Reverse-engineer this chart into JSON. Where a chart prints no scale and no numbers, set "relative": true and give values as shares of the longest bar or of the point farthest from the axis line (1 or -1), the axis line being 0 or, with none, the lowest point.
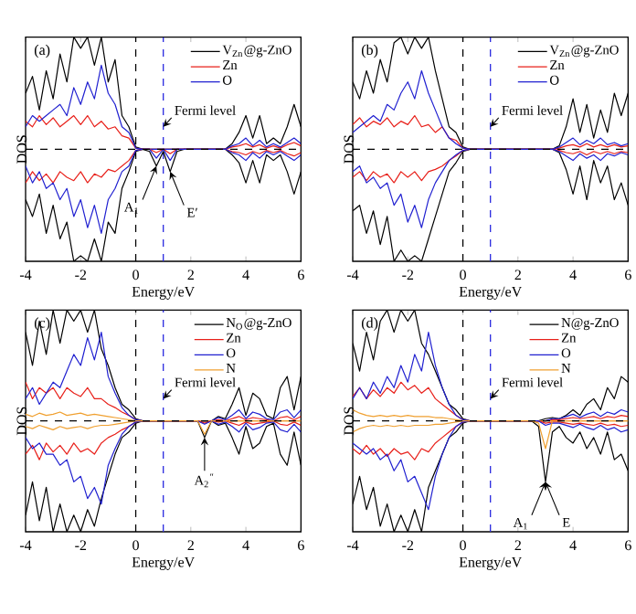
{
  "chart_data": [
    {
      "type": "line",
      "title": "(a)",
      "xlabel": "Energy/eV",
      "ylabel": "DOS",
      "relative": true,
      "legend": "top right",
      "xlim": [
        -4,
        6
      ],
      "xticks": [
        -4,
        -2,
        0,
        2,
        4,
        6
      ],
      "x": [
        -4,
        -3.75,
        -3.5,
        -3.25,
        -3,
        -2.75,
        -2.5,
        -2.25,
        -2,
        -1.75,
        -1.5,
        -1.25,
        -1,
        -0.75,
        -0.5,
        -0.25,
        0,
        0.25,
        0.5,
        0.75,
        1,
        1.25,
        1.5,
        1.75,
        2,
        2.25,
        2.5,
        2.75,
        3,
        3.25,
        3.5,
        3.75,
        4,
        4.25,
        4.5,
        4.75,
        5,
        5.25,
        5.5,
        5.75,
        6
      ],
      "series": [
        {
          "name": "V$_{Zn}$@g-ZnO",
          "color": "#000000",
          "values": [
            0.5,
            0.65,
            0.35,
            0.7,
            0.45,
            0.85,
            0.6,
            1,
            0.9,
            1,
            0.75,
            1,
            0.6,
            0.8,
            0.3,
            0.2,
            0.02,
            0,
            0,
            0,
            0,
            0,
            0,
            0,
            0,
            0,
            0,
            0,
            0,
            0,
            0.05,
            0.15,
            0.3,
            0.1,
            0.3,
            0.05,
            0.1,
            0.05,
            0.2,
            0.4,
            0.2
          ]
        },
        {
          "name": "Zn",
          "color": "#e8201a",
          "values": [
            0.25,
            0.2,
            0.3,
            0.22,
            0.28,
            0.2,
            0.25,
            0.3,
            0.22,
            0.3,
            0.2,
            0.25,
            0.18,
            0.2,
            0.12,
            0.1,
            0.01,
            0,
            0,
            0,
            0,
            0,
            0,
            0,
            0,
            0,
            0,
            0,
            0,
            0,
            0.02,
            0.03,
            0.05,
            0.02,
            0.04,
            0.01,
            0.03,
            0.01,
            0.04,
            0.06,
            0.03
          ]
        },
        {
          "name": "O",
          "color": "#2020d0",
          "values": [
            0.2,
            0.3,
            0.25,
            0.3,
            0.35,
            0.4,
            0.3,
            0.55,
            0.4,
            0.6,
            0.45,
            0.75,
            0.5,
            0.4,
            0.2,
            0.15,
            0.01,
            0,
            0,
            0,
            0,
            0,
            0,
            0,
            0,
            0,
            0,
            0,
            0,
            0,
            0.03,
            0.05,
            0.1,
            0.03,
            0.08,
            0.02,
            0.05,
            0.02,
            0.06,
            0.1,
            0.05
          ]
        },
        {
          "color": "#000000",
          "values": [
            -0.45,
            -0.6,
            -0.4,
            -0.75,
            -0.5,
            -0.8,
            -0.65,
            -1,
            -0.95,
            -1,
            -0.8,
            -1,
            -0.65,
            -0.75,
            -0.35,
            -0.2,
            -0.02,
            0,
            -0.02,
            -0.15,
            -0.02,
            -0.2,
            -0.02,
            0,
            0,
            0,
            0,
            0,
            0,
            0,
            -0.05,
            -0.12,
            -0.3,
            -0.1,
            -0.3,
            -0.05,
            -0.1,
            -0.05,
            -0.2,
            -0.4,
            -0.2
          ]
        },
        {
          "color": "#e8201a",
          "values": [
            -0.3,
            -0.2,
            -0.28,
            -0.22,
            -0.3,
            -0.2,
            -0.25,
            -0.28,
            -0.2,
            -0.3,
            -0.22,
            -0.25,
            -0.18,
            -0.2,
            -0.15,
            -0.1,
            -0.01,
            0,
            0,
            -0.03,
            0,
            -0.04,
            0,
            0,
            0,
            0,
            0,
            0,
            0,
            0,
            -0.02,
            -0.03,
            -0.05,
            -0.02,
            -0.04,
            -0.01,
            -0.03,
            -0.01,
            -0.04,
            -0.06,
            -0.03
          ]
        },
        {
          "color": "#2020d0",
          "values": [
            -0.15,
            -0.3,
            -0.2,
            -0.35,
            -0.3,
            -0.45,
            -0.35,
            -0.6,
            -0.45,
            -0.7,
            -0.5,
            -0.75,
            -0.45,
            -0.35,
            -0.2,
            -0.15,
            -0.01,
            0,
            0,
            -0.08,
            0,
            -0.1,
            0,
            0,
            0,
            0,
            0,
            0,
            0,
            0,
            -0.03,
            -0.05,
            -0.1,
            -0.03,
            -0.08,
            -0.02,
            -0.05,
            -0.02,
            -0.06,
            -0.1,
            -0.05
          ]
        }
      ],
      "ref_lines": [
        {
          "axis": "x",
          "value": 0,
          "color": "#000000",
          "line_style": "dashed"
        },
        {
          "axis": "x",
          "value": 1,
          "color": "#3030e0",
          "line_style": "dashed"
        },
        {
          "axis": "y",
          "value": 0,
          "color": "#000000",
          "line_style": "dashed"
        }
      ],
      "annotations": [
        {
          "text": "Fermi level",
          "x": 1,
          "y": 0.2
        },
        {
          "text": "A$_{1}$",
          "x": 0.75,
          "y": -0.15
        },
        {
          "text": "E′",
          "x": 1.25,
          "y": -0.2
        }
      ]
    },
    {
      "type": "line",
      "title": "(b)",
      "xlabel": "Energy/eV",
      "ylabel": "DOS",
      "relative": true,
      "legend": "top right",
      "xlim": [
        -4,
        6
      ],
      "xticks": [
        -4,
        -2,
        0,
        2,
        4,
        6
      ],
      "x": [
        -4,
        -3.75,
        -3.5,
        -3.25,
        -3,
        -2.75,
        -2.5,
        -2.25,
        -2,
        -1.75,
        -1.5,
        -1.25,
        -1,
        -0.75,
        -0.5,
        -0.25,
        0,
        0.25,
        0.5,
        0.75,
        1,
        1.25,
        1.5,
        1.75,
        2,
        2.25,
        2.5,
        2.75,
        3,
        3.25,
        3.5,
        3.75,
        4,
        4.25,
        4.5,
        4.75,
        5,
        5.25,
        5.5,
        5.75,
        6
      ],
      "series": [
        {
          "name": "V$_{Zn}$@g-ZnO",
          "color": "#000000",
          "values": [
            0.6,
            0.45,
            0.7,
            0.5,
            0.8,
            0.6,
            0.95,
            1,
            0.85,
            1,
            0.9,
            1,
            0.7,
            0.45,
            0.2,
            0.15,
            0.02,
            0,
            0,
            0,
            0,
            0,
            0,
            0,
            0,
            0,
            0,
            0,
            0,
            0,
            0.03,
            0.2,
            0.45,
            0.15,
            0.4,
            0.1,
            0.35,
            0.15,
            0.5,
            0.3,
            0.5
          ]
        },
        {
          "name": "Zn",
          "color": "#e8201a",
          "values": [
            0.22,
            0.28,
            0.2,
            0.25,
            0.22,
            0.28,
            0.2,
            0.25,
            0.22,
            0.3,
            0.2,
            0.22,
            0.15,
            0.2,
            0.1,
            0.08,
            0.01,
            0,
            0,
            0,
            0,
            0,
            0,
            0,
            0,
            0,
            0,
            0,
            0,
            0,
            0.01,
            0.03,
            0.04,
            0.02,
            0.05,
            0.02,
            0.04,
            0.02,
            0.04,
            0.02,
            0.03
          ]
        },
        {
          "name": "O",
          "color": "#2020d0",
          "values": [
            0.15,
            0.2,
            0.25,
            0.3,
            0.25,
            0.4,
            0.35,
            0.5,
            0.6,
            0.45,
            0.7,
            0.5,
            0.35,
            0.2,
            0.1,
            0.05,
            0.01,
            0,
            0,
            0,
            0,
            0,
            0,
            0,
            0,
            0,
            0,
            0,
            0,
            0,
            0.02,
            0.06,
            0.1,
            0.04,
            0.08,
            0.05,
            0.1,
            0.04,
            0.06,
            0.03,
            0.05
          ]
        },
        {
          "color": "#000000",
          "values": [
            -0.55,
            -0.5,
            -0.75,
            -0.55,
            -0.85,
            -0.6,
            -1,
            -0.9,
            -1,
            -0.95,
            -1,
            -0.8,
            -0.6,
            -0.4,
            -0.2,
            -0.12,
            -0.02,
            0,
            0,
            0,
            0,
            0,
            0,
            0,
            0,
            0,
            0,
            0,
            0,
            0,
            -0.03,
            -0.18,
            -0.4,
            -0.15,
            -0.45,
            -0.1,
            -0.3,
            -0.15,
            -0.45,
            -0.3,
            -0.5
          ]
        },
        {
          "color": "#e8201a",
          "values": [
            -0.25,
            -0.2,
            -0.28,
            -0.2,
            -0.25,
            -0.22,
            -0.3,
            -0.2,
            -0.25,
            -0.2,
            -0.28,
            -0.2,
            -0.18,
            -0.15,
            -0.1,
            -0.06,
            -0.01,
            0,
            0,
            0,
            0,
            0,
            0,
            0,
            0,
            0,
            0,
            0,
            0,
            0,
            -0.01,
            -0.03,
            -0.04,
            -0.02,
            -0.05,
            -0.02,
            -0.04,
            -0.02,
            -0.04,
            -0.02,
            -0.03
          ]
        },
        {
          "color": "#2020d0",
          "values": [
            -0.2,
            -0.15,
            -0.3,
            -0.25,
            -0.35,
            -0.3,
            -0.5,
            -0.4,
            -0.65,
            -0.5,
            -0.7,
            -0.45,
            -0.3,
            -0.2,
            -0.1,
            -0.05,
            -0.01,
            0,
            0,
            0,
            0,
            0,
            0,
            0,
            0,
            0,
            0,
            0,
            0,
            0,
            -0.02,
            -0.06,
            -0.1,
            -0.04,
            -0.08,
            -0.05,
            -0.1,
            -0.04,
            -0.06,
            -0.03,
            -0.05
          ]
        }
      ],
      "ref_lines": [
        {
          "axis": "x",
          "value": 0,
          "color": "#000000",
          "line_style": "dashed"
        },
        {
          "axis": "x",
          "value": 1,
          "color": "#3030e0",
          "line_style": "dashed"
        },
        {
          "axis": "y",
          "value": 0,
          "color": "#000000",
          "line_style": "dashed"
        }
      ],
      "annotations": [
        {
          "text": "Fermi level",
          "x": 1,
          "y": 0.2
        }
      ]
    },
    {
      "type": "line",
      "title": "(c)",
      "xlabel": "Energy/eV",
      "ylabel": "DOS",
      "relative": true,
      "legend": "top right",
      "xlim": [
        -4,
        6
      ],
      "xticks": [
        -4,
        -2,
        0,
        2,
        4,
        6
      ],
      "x": [
        -4,
        -3.75,
        -3.5,
        -3.25,
        -3,
        -2.75,
        -2.5,
        -2.25,
        -2,
        -1.75,
        -1.5,
        -1.25,
        -1,
        -0.75,
        -0.5,
        -0.25,
        0,
        0.25,
        0.5,
        0.75,
        1,
        1.25,
        1.5,
        1.75,
        2,
        2.25,
        2.5,
        2.75,
        3,
        3.25,
        3.5,
        3.75,
        4,
        4.25,
        4.5,
        4.75,
        5,
        5.25,
        5.5,
        5.75,
        6
      ],
      "series": [
        {
          "name": "N$_{O}$@g-ZnO",
          "color": "#000000",
          "values": [
            0.8,
            0.5,
            0.9,
            0.6,
            1,
            0.7,
            1,
            0.9,
            1,
            0.8,
            1,
            0.65,
            0.5,
            0.3,
            0.15,
            0.1,
            0.02,
            0,
            0,
            0,
            0,
            0,
            0,
            0,
            0,
            0,
            0,
            0,
            0.04,
            0.02,
            0.15,
            0.3,
            0.05,
            0.25,
            0.2,
            0.05,
            0.02,
            0.3,
            0.4,
            0.1,
            0.4
          ]
        },
        {
          "name": "Zn",
          "color": "#e8201a",
          "values": [
            0.35,
            0.2,
            0.3,
            0.25,
            0.3,
            0.2,
            0.3,
            0.25,
            0.22,
            0.3,
            0.2,
            0.2,
            0.15,
            0.12,
            0.08,
            0.05,
            0.01,
            0,
            0,
            0,
            0,
            0,
            0,
            0,
            0,
            0,
            0,
            0,
            0.01,
            0,
            0.02,
            0.04,
            0.01,
            0.03,
            0.02,
            0.01,
            0,
            0.03,
            0.04,
            0.01,
            0.04
          ]
        },
        {
          "name": "O",
          "color": "#2020d0",
          "values": [
            0.2,
            0.3,
            0.15,
            0.25,
            0.35,
            0.3,
            0.45,
            0.6,
            0.5,
            0.75,
            0.55,
            0.8,
            0.4,
            0.25,
            0.12,
            0.05,
            0.01,
            0,
            0,
            0,
            0,
            0,
            0,
            0,
            0,
            0,
            0,
            0,
            0.03,
            0.01,
            0.05,
            0.1,
            0.02,
            0.08,
            0.06,
            0.02,
            0.01,
            0.08,
            0.1,
            0.03,
            0.1
          ]
        },
        {
          "name": "N",
          "color": "#f0a030",
          "values": [
            0.06,
            0.04,
            0.07,
            0.05,
            0.06,
            0.08,
            0.05,
            0.06,
            0.07,
            0.05,
            0.06,
            0.05,
            0.04,
            0.03,
            0.02,
            0.01,
            0,
            0,
            0,
            0,
            0,
            0,
            0,
            0,
            0,
            0,
            0,
            0,
            0,
            0,
            0,
            0,
            0,
            0,
            0,
            0,
            0,
            0,
            0,
            0,
            0
          ]
        },
        {
          "color": "#000000",
          "values": [
            -0.85,
            -0.55,
            -0.9,
            -0.6,
            -1,
            -0.75,
            -1,
            -0.85,
            -1,
            -0.8,
            -0.95,
            -0.7,
            -0.5,
            -0.3,
            -0.15,
            -0.1,
            -0.02,
            0,
            0,
            0,
            0,
            0,
            0,
            0,
            0,
            0,
            -0.15,
            0,
            -0.04,
            -0.02,
            -0.15,
            -0.3,
            -0.05,
            -0.25,
            -0.2,
            -0.05,
            -0.02,
            -0.3,
            -0.4,
            -0.1,
            -0.4
          ]
        },
        {
          "color": "#e8201a",
          "values": [
            -0.3,
            -0.22,
            -0.35,
            -0.2,
            -0.28,
            -0.22,
            -0.3,
            -0.2,
            -0.28,
            -0.25,
            -0.3,
            -0.2,
            -0.15,
            -0.12,
            -0.08,
            -0.05,
            -0.01,
            0,
            0,
            0,
            0,
            0,
            0,
            0,
            0,
            0,
            -0.02,
            0,
            -0.01,
            0,
            -0.02,
            -0.04,
            -0.01,
            -0.03,
            -0.02,
            -0.01,
            0,
            -0.03,
            -0.04,
            -0.01,
            -0.04
          ]
        },
        {
          "color": "#2020d0",
          "values": [
            -0.15,
            -0.25,
            -0.2,
            -0.3,
            -0.3,
            -0.4,
            -0.35,
            -0.55,
            -0.5,
            -0.7,
            -0.6,
            -0.75,
            -0.4,
            -0.25,
            -0.12,
            -0.05,
            -0.01,
            0,
            0,
            0,
            0,
            0,
            0,
            0,
            0,
            0,
            -0.03,
            0,
            -0.03,
            -0.01,
            -0.05,
            -0.1,
            -0.02,
            -0.08,
            -0.06,
            -0.02,
            -0.01,
            -0.08,
            -0.1,
            -0.03,
            -0.1
          ]
        },
        {
          "color": "#f0a030",
          "values": [
            -0.05,
            -0.07,
            -0.04,
            -0.06,
            -0.08,
            -0.05,
            -0.07,
            -0.06,
            -0.05,
            -0.07,
            -0.05,
            -0.04,
            -0.04,
            -0.03,
            -0.02,
            -0.01,
            0,
            0,
            0,
            0,
            0,
            0,
            0,
            0,
            0,
            0,
            -0.12,
            0,
            0,
            0,
            0,
            0,
            0,
            0,
            0,
            0,
            0,
            0,
            0,
            0,
            0
          ]
        }
      ],
      "ref_lines": [
        {
          "axis": "x",
          "value": 0,
          "color": "#000000",
          "line_style": "dashed"
        },
        {
          "axis": "x",
          "value": 1,
          "color": "#3030e0",
          "line_style": "dashed"
        },
        {
          "axis": "y",
          "value": 0,
          "color": "#000000",
          "line_style": "dashed"
        }
      ],
      "annotations": [
        {
          "text": "Fermi level",
          "x": 1,
          "y": 0.2
        },
        {
          "text": "A$_{2}$$^{″}$",
          "x": 2.5,
          "y": -0.15
        }
      ]
    },
    {
      "type": "line",
      "title": "(d)",
      "xlabel": "Energy/eV",
      "ylabel": "DOS",
      "relative": true,
      "legend": "top right",
      "xlim": [
        -4,
        6
      ],
      "xticks": [
        -4,
        -2,
        0,
        2,
        4,
        6
      ],
      "x": [
        -4,
        -3.75,
        -3.5,
        -3.25,
        -3,
        -2.75,
        -2.5,
        -2.25,
        -2,
        -1.75,
        -1.5,
        -1.25,
        -1,
        -0.75,
        -0.5,
        -0.25,
        0,
        0.25,
        0.5,
        0.75,
        1,
        1.25,
        1.5,
        1.75,
        2,
        2.25,
        2.5,
        2.75,
        3,
        3.25,
        3.5,
        3.75,
        4,
        4.25,
        4.5,
        4.75,
        5,
        5.25,
        5.5,
        5.75,
        6
      ],
      "series": [
        {
          "name": "N@g-ZnO",
          "color": "#000000",
          "values": [
            0.7,
            0.45,
            0.8,
            0.55,
            0.9,
            1,
            0.8,
            1,
            0.9,
            1,
            0.7,
            0.6,
            0.45,
            0.3,
            0.15,
            0.1,
            0.02,
            0,
            0,
            0,
            0,
            0,
            0,
            0,
            0,
            0,
            0,
            0,
            0.02,
            0.03,
            0.02,
            0.05,
            0.1,
            0.05,
            0.15,
            0.2,
            0.1,
            0.3,
            0.2,
            0.4,
            0.35
          ]
        },
        {
          "name": "Zn",
          "color": "#e8201a",
          "values": [
            0.22,
            0.3,
            0.2,
            0.28,
            0.22,
            0.3,
            0.25,
            0.35,
            0.28,
            0.32,
            0.25,
            0.3,
            0.2,
            0.15,
            0.1,
            0.05,
            0.01,
            0,
            0,
            0,
            0,
            0,
            0,
            0,
            0,
            0,
            0,
            0,
            0,
            0.01,
            0.01,
            0.02,
            0.03,
            0.02,
            0.03,
            0.04,
            0.02,
            0.04,
            0.03,
            0.05,
            0.04
          ]
        },
        {
          "name": "O",
          "color": "#2020d0",
          "values": [
            0.2,
            0.3,
            0.2,
            0.35,
            0.25,
            0.4,
            0.3,
            0.5,
            0.35,
            0.6,
            0.45,
            0.8,
            0.5,
            0.3,
            0.15,
            0.05,
            0.01,
            0,
            0,
            0,
            0,
            0,
            0,
            0,
            0,
            0,
            0,
            0,
            0,
            0.02,
            0.02,
            0.04,
            0.06,
            0.03,
            0.06,
            0.08,
            0.04,
            0.08,
            0.06,
            0.1,
            0.08
          ]
        },
        {
          "name": "N",
          "color": "#f0a030",
          "values": [
            0.1,
            0.07,
            0.05,
            0.04,
            0.05,
            0.04,
            0.05,
            0.04,
            0.05,
            0.04,
            0.04,
            0.04,
            0.03,
            0.03,
            0.02,
            0.01,
            0,
            0,
            0,
            0,
            0,
            0,
            0,
            0,
            0,
            0,
            0,
            0,
            0,
            0,
            0,
            0,
            0,
            0,
            0,
            0,
            0,
            0,
            0,
            0,
            0
          ]
        },
        {
          "color": "#000000",
          "values": [
            -0.75,
            -0.5,
            -0.8,
            -0.6,
            -0.95,
            -0.75,
            -1,
            -0.85,
            -1,
            -0.8,
            -1,
            -0.6,
            -0.45,
            -0.3,
            -0.15,
            -0.1,
            -0.02,
            0,
            0,
            0,
            0,
            0,
            0,
            0,
            0,
            0,
            0,
            -0.05,
            -0.55,
            -0.1,
            -0.05,
            -0.15,
            -0.2,
            -0.1,
            -0.25,
            -0.15,
            -0.3,
            -0.1,
            -0.35,
            -0.3,
            -0.45
          ]
        },
        {
          "color": "#e8201a",
          "values": [
            -0.25,
            -0.3,
            -0.22,
            -0.3,
            -0.25,
            -0.32,
            -0.25,
            -0.3,
            -0.28,
            -0.35,
            -0.25,
            -0.28,
            -0.2,
            -0.15,
            -0.1,
            -0.05,
            -0.01,
            0,
            0,
            0,
            0,
            0,
            0,
            0,
            0,
            0,
            0,
            0,
            -0.02,
            -0.01,
            -0.01,
            -0.02,
            -0.03,
            -0.02,
            -0.03,
            -0.04,
            -0.02,
            -0.04,
            -0.03,
            -0.05,
            -0.04
          ]
        },
        {
          "color": "#2020d0",
          "values": [
            -0.2,
            -0.25,
            -0.3,
            -0.25,
            -0.35,
            -0.3,
            -0.45,
            -0.35,
            -0.55,
            -0.5,
            -0.65,
            -0.8,
            -0.5,
            -0.3,
            -0.15,
            -0.05,
            -0.01,
            0,
            0,
            0,
            0,
            0,
            0,
            0,
            0,
            0,
            0,
            0,
            -0.04,
            -0.02,
            -0.02,
            -0.04,
            -0.06,
            -0.03,
            -0.06,
            -0.08,
            -0.04,
            -0.08,
            -0.06,
            -0.1,
            -0.08
          ]
        },
        {
          "color": "#f0a030",
          "values": [
            -0.1,
            -0.07,
            -0.05,
            -0.04,
            -0.05,
            -0.04,
            -0.05,
            -0.04,
            -0.05,
            -0.04,
            -0.04,
            -0.04,
            -0.03,
            -0.03,
            -0.02,
            -0.01,
            0,
            0,
            0,
            0,
            0,
            0,
            0,
            0,
            0,
            0,
            0,
            -0.02,
            -0.25,
            0,
            0,
            0,
            0,
            0,
            0,
            0,
            0,
            0,
            0,
            0,
            0
          ]
        }
      ],
      "ref_lines": [
        {
          "axis": "x",
          "value": 0,
          "color": "#000000",
          "line_style": "dashed"
        },
        {
          "axis": "x",
          "value": 1,
          "color": "#3030e0",
          "line_style": "dashed"
        },
        {
          "axis": "y",
          "value": 0,
          "color": "#000000",
          "line_style": "dashed"
        }
      ],
      "annotations": [
        {
          "text": "Fermi level",
          "x": 1,
          "y": 0.2
        },
        {
          "text": "A$_{1}$",
          "x": 3,
          "y": -0.55
        },
        {
          "text": "E",
          "x": 3,
          "y": -0.55
        }
      ]
    }
  ]
}
